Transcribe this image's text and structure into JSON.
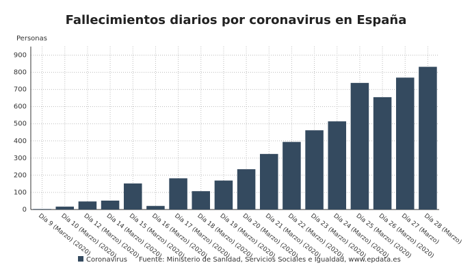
{
  "chart_data": {
    "type": "bar",
    "title": "Fallecimientos diarios por coronavirus en España",
    "y_label": "Personas",
    "categories": [
      "Día 9 (Marzo) (2020)",
      "Día 10 (Marzo) (2020)",
      "Día 12 (Marzo) (2020)",
      "Día 14 (Marzo) (2020)",
      "Día 15 (Marzo) (2020)",
      "Día 16 (Marzo) (2020)",
      "Día 17 (Marzo) (2020)",
      "Día 18 (Marzo) (2020)",
      "Día 19 (Marzo) (2020)",
      "Día 20 (Marzo) (2020)",
      "Día 21 (Marzo) (2020)",
      "Día 22 (Marzo) (2020)",
      "Día 23 (Marzo) (2020)",
      "Día 24 (Marzo) (2020)",
      "Día 25 (Marzo) (2020)",
      "Día 26 (Marzo) (2020)",
      "Día 27 (Marzo)",
      "Día 28 (Marzo)"
    ],
    "series": [
      {
        "name": "Coronavirus",
        "color": "#344a5f",
        "values": [
          3,
          17,
          47,
          52,
          152,
          21,
          182,
          107,
          169,
          235,
          324,
          394,
          462,
          514,
          738,
          655,
          769,
          832
        ]
      }
    ],
    "source": "Fuente: Ministerio de Sanidad, Servicios Sociales e Igualdad, www.epdata.es",
    "ylim": [
      0,
      950
    ],
    "yticks": [
      0,
      100,
      200,
      300,
      400,
      500,
      600,
      700,
      800,
      900
    ],
    "grid": true
  }
}
